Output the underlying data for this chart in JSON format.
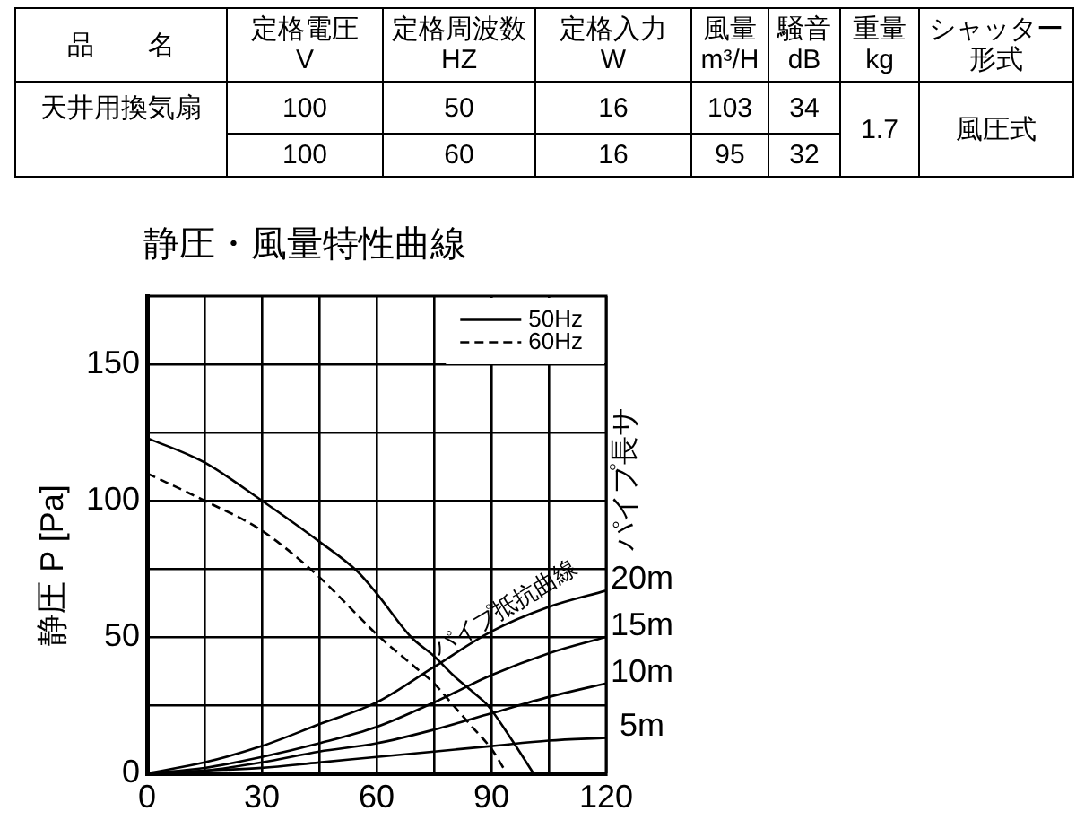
{
  "chart_data": [
    {
      "type": "other",
      "annotations": [
        "品　　名",
        "定格電圧",
        "V",
        "定格周波数",
        "HZ",
        "定格入力",
        "W",
        "風量",
        "m³/H",
        "騒音",
        "dB",
        "重量",
        "kg",
        "シャッター",
        "形式",
        "天井用換気扇",
        "100",
        "50",
        "16",
        "103",
        "34",
        "1.7",
        "風圧式",
        "100",
        "60",
        "16",
        "95",
        "32"
      ]
    },
    {
      "type": "line",
      "title": "静圧・風量特性曲線",
      "ylabel": "静圧 P [Pa]",
      "xlim": [
        0,
        120
      ],
      "xticks": [
        0,
        {
          "value": 15,
          "label": null
        },
        30,
        {
          "value": 45,
          "label": null
        },
        60,
        {
          "value": 75,
          "label": null
        },
        90,
        {
          "value": 105,
          "label": null
        },
        120
      ],
      "ylim": [
        0,
        175
      ],
      "yticks": [
        0,
        {
          "value": 25,
          "label": null
        },
        50,
        {
          "value": 75,
          "label": null
        },
        100,
        {
          "value": 125,
          "label": null
        },
        150
      ],
      "grid": true,
      "legend": "top right",
      "marker": "none",
      "series": [
        {
          "name": "50Hz",
          "color": "#000000",
          "line_style": "solid",
          "x": [
            0,
            15,
            30,
            45,
            55,
            60,
            69,
            75,
            80,
            85,
            89,
            95,
            101
          ],
          "values": [
            123,
            114,
            100,
            85,
            74,
            66,
            50,
            43,
            36,
            30,
            25,
            13,
            0
          ]
        },
        {
          "name": "60Hz",
          "color": "#000000",
          "line_style": "dashed",
          "x": [
            0,
            15,
            30,
            45,
            55,
            60,
            70,
            75,
            80,
            85,
            90,
            94
          ],
          "values": [
            110,
            100,
            89,
            72,
            58,
            51,
            39,
            33,
            25,
            17,
            9,
            0
          ]
        },
        {
          "color": "#000000",
          "line_style": "solid",
          "x": [
            0,
            15,
            30,
            45,
            60,
            75,
            90,
            105,
            120
          ],
          "values": [
            0,
            4,
            10,
            18,
            26,
            39,
            52,
            61,
            67
          ]
        },
        {
          "color": "#000000",
          "line_style": "solid",
          "x": [
            0,
            15,
            30,
            45,
            60,
            75,
            90,
            105,
            120
          ],
          "values": [
            0,
            2,
            6,
            11,
            17,
            26,
            36,
            44,
            50
          ]
        },
        {
          "color": "#000000",
          "line_style": "solid",
          "x": [
            0,
            15,
            30,
            45,
            60,
            75,
            90,
            105,
            120
          ],
          "values": [
            0,
            1,
            4,
            8,
            11,
            16,
            22,
            28,
            33
          ]
        },
        {
          "color": "#000000",
          "line_style": "solid",
          "x": [
            0,
            15,
            30,
            45,
            60,
            75,
            90,
            105,
            120
          ],
          "values": [
            0,
            1,
            2,
            4,
            6,
            8,
            10,
            12,
            13
          ]
        }
      ],
      "annotations": [
        "20m",
        "15m",
        "10m",
        "5m",
        "パイプ長サ",
        {
          "text": "パイプ抵抗曲線",
          "x": 96,
          "y": 55
        }
      ]
    }
  ]
}
